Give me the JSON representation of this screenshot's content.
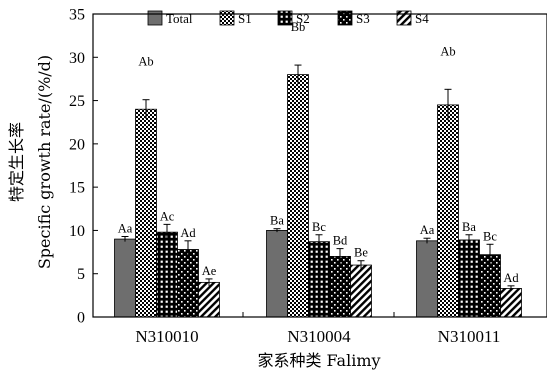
{
  "chart_data": {
    "type": "bar",
    "categories": [
      "N310010",
      "N310004",
      "N310011"
    ],
    "series": [
      {
        "name": "Total",
        "values": [
          9.0,
          10.0,
          8.8
        ],
        "errors": [
          0.3,
          0.2,
          0.3
        ],
        "labels": [
          "Aa",
          "Ba",
          "Aa"
        ],
        "pattern": "gray"
      },
      {
        "name": "S1",
        "values": [
          24.0,
          28.0,
          24.5
        ],
        "errors": [
          1.1,
          1.1,
          1.8
        ],
        "labels": [
          "Ab",
          "Bb",
          "Ab"
        ],
        "pattern": "checker"
      },
      {
        "name": "S2",
        "values": [
          9.8,
          8.7,
          8.9
        ],
        "errors": [
          0.9,
          0.8,
          0.6
        ],
        "labels": [
          "Ac",
          "Bc",
          "Ba"
        ],
        "pattern": "grid"
      },
      {
        "name": "S3",
        "values": [
          7.8,
          7.0,
          7.2
        ],
        "errors": [
          1.0,
          0.9,
          1.2
        ],
        "labels": [
          "Ad",
          "Bd",
          "Bc"
        ],
        "pattern": "dots"
      },
      {
        "name": "S4",
        "values": [
          4.0,
          6.0,
          3.3
        ],
        "errors": [
          0.4,
          0.5,
          0.3
        ],
        "labels": [
          "Ae",
          "Be",
          "Ad"
        ],
        "pattern": "diagonal"
      }
    ],
    "ylabel_line1": "特定生长率",
    "ylabel_line2": "Specific growth rate/(%/d)",
    "xlabel": "家系种类 Falimy",
    "ylim": [
      0,
      35
    ],
    "yticks": [
      "0",
      "5",
      "10",
      "15",
      "20",
      "25",
      "30",
      "35"
    ],
    "legend_position": "top",
    "grid": false
  }
}
